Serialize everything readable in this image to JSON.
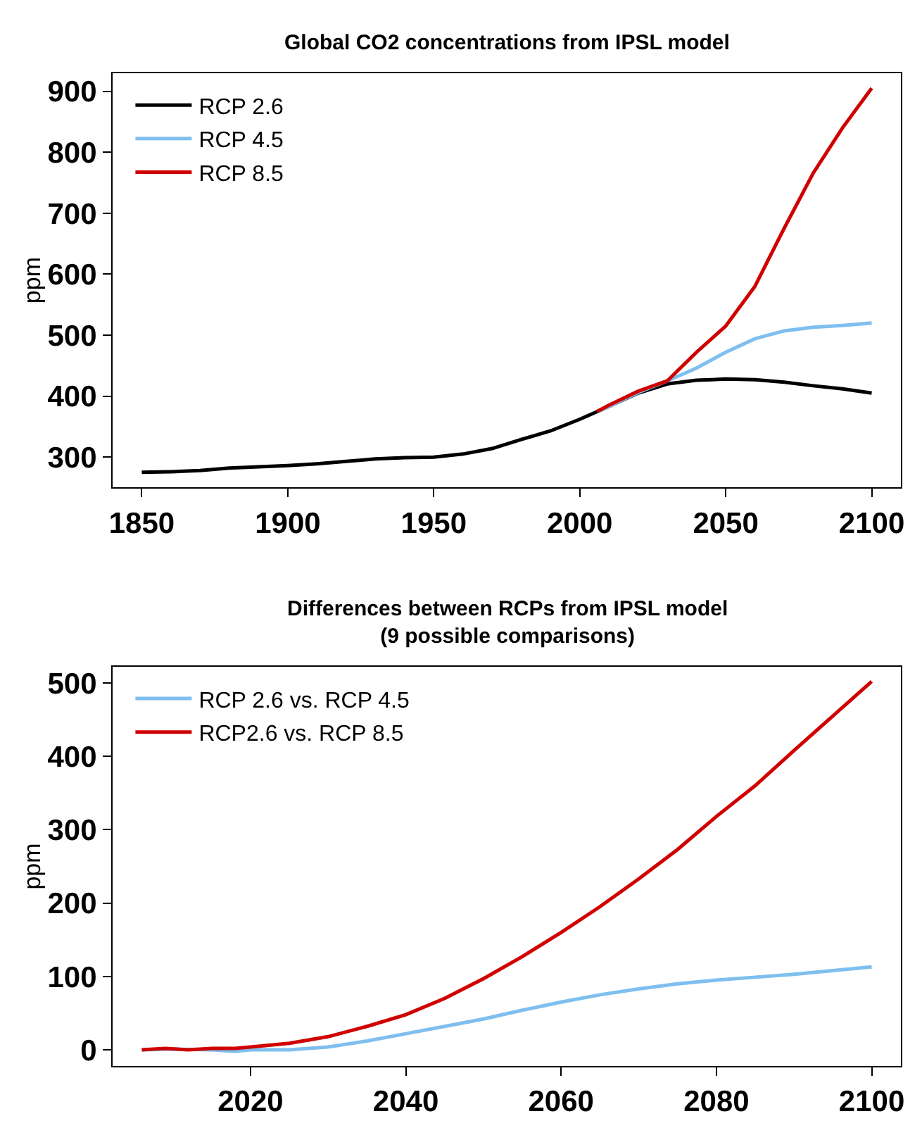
{
  "chart_data": [
    {
      "type": "line",
      "title": "Global CO2 concentrations from IPSL model",
      "ylabel": "ppm",
      "xlim": [
        1840,
        2110
      ],
      "ylim": [
        250,
        930
      ],
      "xticks": [
        1850,
        1900,
        1950,
        2000,
        2050,
        2100
      ],
      "yticks": [
        300,
        400,
        500,
        600,
        700,
        800,
        900
      ],
      "legend": "top left",
      "marker": "none",
      "line_style": "solid",
      "series": [
        {
          "name": "RCP 2.6",
          "color": "#000000",
          "x": [
            1850,
            1860,
            1870,
            1880,
            1890,
            1900,
            1910,
            1920,
            1930,
            1940,
            1950,
            1960,
            1970,
            1980,
            1990,
            2000,
            2010,
            2020,
            2030,
            2040,
            2050,
            2060,
            2070,
            2080,
            2090,
            2100
          ],
          "values": [
            275,
            276,
            278,
            282,
            284,
            286,
            289,
            293,
            297,
            299,
            300,
            305,
            314,
            329,
            343,
            362,
            383,
            405,
            420,
            426,
            428,
            427,
            423,
            417,
            412,
            405
          ]
        },
        {
          "name": "RCP 4.5",
          "color": "#7fbfef",
          "x": [
            2006,
            2010,
            2020,
            2030,
            2040,
            2050,
            2060,
            2070,
            2080,
            2090,
            2100
          ],
          "values": [
            375,
            383,
            406,
            425,
            446,
            472,
            494,
            507,
            513,
            516,
            520
          ]
        },
        {
          "name": "RCP 8.5",
          "color": "#d00000",
          "x": [
            2006,
            2010,
            2020,
            2030,
            2040,
            2050,
            2060,
            2070,
            2080,
            2090,
            2100
          ],
          "values": [
            375,
            385,
            408,
            425,
            472,
            515,
            580,
            675,
            766,
            840,
            905
          ]
        }
      ]
    },
    {
      "type": "line",
      "title": "Differences between RCPs from IPSL model\n(9 possible comparisons)",
      "ylabel": "ppm",
      "xlim": [
        2002.24,
        2103.76
      ],
      "ylim": [
        -22,
        522
      ],
      "xticks": [
        2020,
        2040,
        2060,
        2080,
        2100
      ],
      "yticks": [
        0,
        100,
        200,
        300,
        400,
        500
      ],
      "legend": "top left",
      "marker": "none",
      "line_style": "solid",
      "series": [
        {
          "name": "RCP 2.6 vs. RCP 4.5",
          "color": "#7fbfef",
          "x": [
            2006,
            2010,
            2015,
            2018,
            2020,
            2025,
            2030,
            2035,
            2040,
            2045,
            2050,
            2055,
            2060,
            2065,
            2070,
            2075,
            2080,
            2085,
            2090,
            2095,
            2100
          ],
          "values": [
            0,
            1,
            0,
            -2,
            0,
            0,
            4,
            12,
            22,
            32,
            42,
            54,
            65,
            75,
            83,
            90,
            95,
            99,
            103,
            108,
            113
          ]
        },
        {
          "name": "RCP2.6 vs. RCP 8.5",
          "color": "#d00000",
          "x": [
            2006,
            2009,
            2012,
            2015,
            2018,
            2020,
            2025,
            2030,
            2035,
            2040,
            2045,
            2050,
            2055,
            2060,
            2065,
            2070,
            2075,
            2080,
            2085,
            2090,
            2095,
            2100
          ],
          "values": [
            0,
            2,
            0,
            2,
            2,
            4,
            9,
            18,
            32,
            48,
            70,
            97,
            127,
            160,
            195,
            233,
            273,
            318,
            360,
            408,
            455,
            502
          ]
        }
      ]
    }
  ]
}
